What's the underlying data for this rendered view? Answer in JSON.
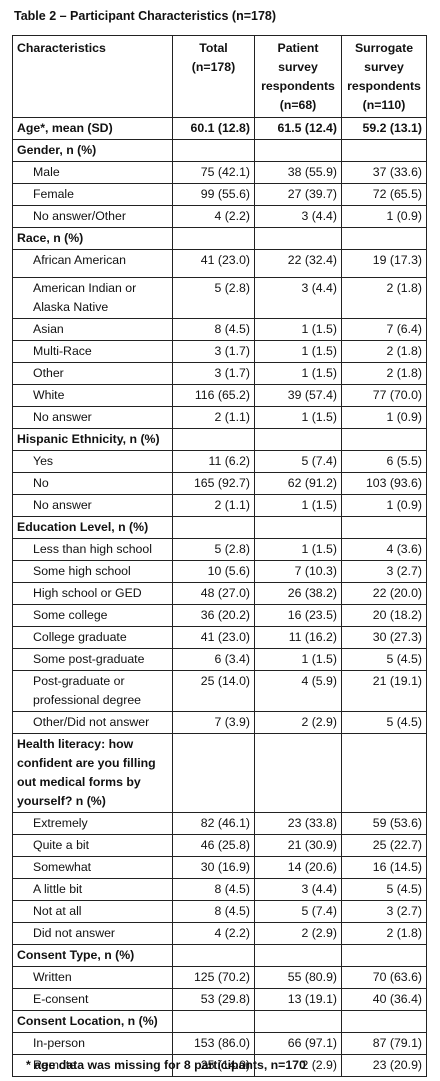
{
  "title": "Table 2 – Participant Characteristics (n=178)",
  "columns": [
    "Characteristics",
    "Total (n=178)",
    "Patient survey respondents (n=68)",
    "Surrogate survey respondents (n=110)"
  ],
  "rows": [
    {
      "kind": "bold",
      "label": "Age*, mean (SD)",
      "values": [
        "60.1 (12.8)",
        "61.5 (12.4)",
        "59.2 (13.1)"
      ]
    },
    {
      "kind": "section",
      "label": "Gender, n (%)"
    },
    {
      "kind": "item",
      "label": "Male",
      "values": [
        "75 (42.1)",
        "38 (55.9)",
        "37 (33.6)"
      ]
    },
    {
      "kind": "item",
      "label": "Female",
      "values": [
        "99 (55.6)",
        "27 (39.7)",
        "72 (65.5)"
      ]
    },
    {
      "kind": "item",
      "label": "No answer/Other",
      "values": [
        "4 (2.2)",
        "3 (4.4)",
        "1 (0.9)"
      ]
    },
    {
      "kind": "section",
      "label": "Race, n (%)"
    },
    {
      "kind": "item",
      "label": "African American",
      "values": [
        "41 (23.0)",
        "22 (32.4)",
        "19 (17.3)"
      ],
      "gap": true
    },
    {
      "kind": "item",
      "label": "American Indian or Alaska Native",
      "values": [
        "5 (2.8)",
        "3 (4.4)",
        "2 (1.8)"
      ]
    },
    {
      "kind": "item",
      "label": "Asian",
      "values": [
        "8 (4.5)",
        "1 (1.5)",
        "7 (6.4)"
      ]
    },
    {
      "kind": "item",
      "label": "Multi-Race",
      "values": [
        "3 (1.7)",
        "1 (1.5)",
        "2 (1.8)"
      ]
    },
    {
      "kind": "item",
      "label": "Other",
      "values": [
        "3 (1.7)",
        "1 (1.5)",
        "2 (1.8)"
      ]
    },
    {
      "kind": "item",
      "label": "White",
      "values": [
        "116 (65.2)",
        "39 (57.4)",
        "77 (70.0)"
      ]
    },
    {
      "kind": "item",
      "label": "No answer",
      "values": [
        "2 (1.1)",
        "1 (1.5)",
        "1 (0.9)"
      ]
    },
    {
      "kind": "section",
      "label": "Hispanic Ethnicity, n (%)"
    },
    {
      "kind": "item",
      "label": "Yes",
      "values": [
        "11 (6.2)",
        "5 (7.4)",
        "6 (5.5)"
      ]
    },
    {
      "kind": "item",
      "label": "No",
      "values": [
        "165 (92.7)",
        "62 (91.2)",
        "103 (93.6)"
      ]
    },
    {
      "kind": "item",
      "label": "No answer",
      "values": [
        "2 (1.1)",
        "1 (1.5)",
        "1 (0.9)"
      ]
    },
    {
      "kind": "section",
      "label": "Education Level, n (%)"
    },
    {
      "kind": "item",
      "label": "Less than high school",
      "values": [
        "5 (2.8)",
        "1 (1.5)",
        "4 (3.6)"
      ]
    },
    {
      "kind": "item",
      "label": "Some high school",
      "values": [
        "10 (5.6)",
        "7 (10.3)",
        "3 (2.7)"
      ]
    },
    {
      "kind": "item",
      "label": "High school or GED",
      "values": [
        "48 (27.0)",
        "26 (38.2)",
        "22 (20.0)"
      ]
    },
    {
      "kind": "item",
      "label": "Some college",
      "values": [
        "36 (20.2)",
        "16 (23.5)",
        "20 (18.2)"
      ]
    },
    {
      "kind": "item",
      "label": "College graduate",
      "values": [
        "41 (23.0)",
        "11 (16.2)",
        "30 (27.3)"
      ]
    },
    {
      "kind": "item",
      "label": "Some post-graduate",
      "values": [
        "6 (3.4)",
        "1 (1.5)",
        "5 (4.5)"
      ]
    },
    {
      "kind": "item",
      "label": "Post-graduate or professional degree",
      "values": [
        "25 (14.0)",
        "4 (5.9)",
        "21 (19.1)"
      ]
    },
    {
      "kind": "item",
      "label": "Other/Did not answer",
      "values": [
        "7 (3.9)",
        "2 (2.9)",
        "5 (4.5)"
      ]
    },
    {
      "kind": "section",
      "label": "Health literacy: how confident are you filling out medical forms by yourself?  n (%)"
    },
    {
      "kind": "item",
      "label": "Extremely",
      "values": [
        "82 (46.1)",
        "23 (33.8)",
        "59 (53.6)"
      ]
    },
    {
      "kind": "item",
      "label": "Quite a bit",
      "values": [
        "46 (25.8)",
        "21 (30.9)",
        "25 (22.7)"
      ]
    },
    {
      "kind": "item",
      "label": "Somewhat",
      "values": [
        "30 (16.9)",
        "14 (20.6)",
        "16 (14.5)"
      ]
    },
    {
      "kind": "item",
      "label": "A little bit",
      "values": [
        "8 (4.5)",
        "3 (4.4)",
        "5 (4.5)"
      ]
    },
    {
      "kind": "item",
      "label": "Not at all",
      "values": [
        "8 (4.5)",
        "5 (7.4)",
        "3 (2.7)"
      ]
    },
    {
      "kind": "item",
      "label": "Did not answer",
      "values": [
        "4 (2.2)",
        "2 (2.9)",
        "2 (1.8)"
      ]
    },
    {
      "kind": "section",
      "label": "Consent Type, n (%)"
    },
    {
      "kind": "item",
      "label": "Written",
      "values": [
        "125 (70.2)",
        "55 (80.9)",
        "70 (63.6)"
      ]
    },
    {
      "kind": "item",
      "label": "E-consent",
      "values": [
        "53 (29.8)",
        "13 (19.1)",
        "40 (36.4)"
      ]
    },
    {
      "kind": "section",
      "label": "Consent Location, n (%)"
    },
    {
      "kind": "item",
      "label": "In-person",
      "values": [
        "153 (86.0)",
        "66 (97.1)",
        "87 (79.1)"
      ]
    },
    {
      "kind": "item",
      "label": "Remote",
      "values": [
        "25 (14.0)",
        "2 (2.9)",
        "23 (20.9)"
      ]
    }
  ],
  "footnote": "* age data was missing for 8 participants, n=170"
}
